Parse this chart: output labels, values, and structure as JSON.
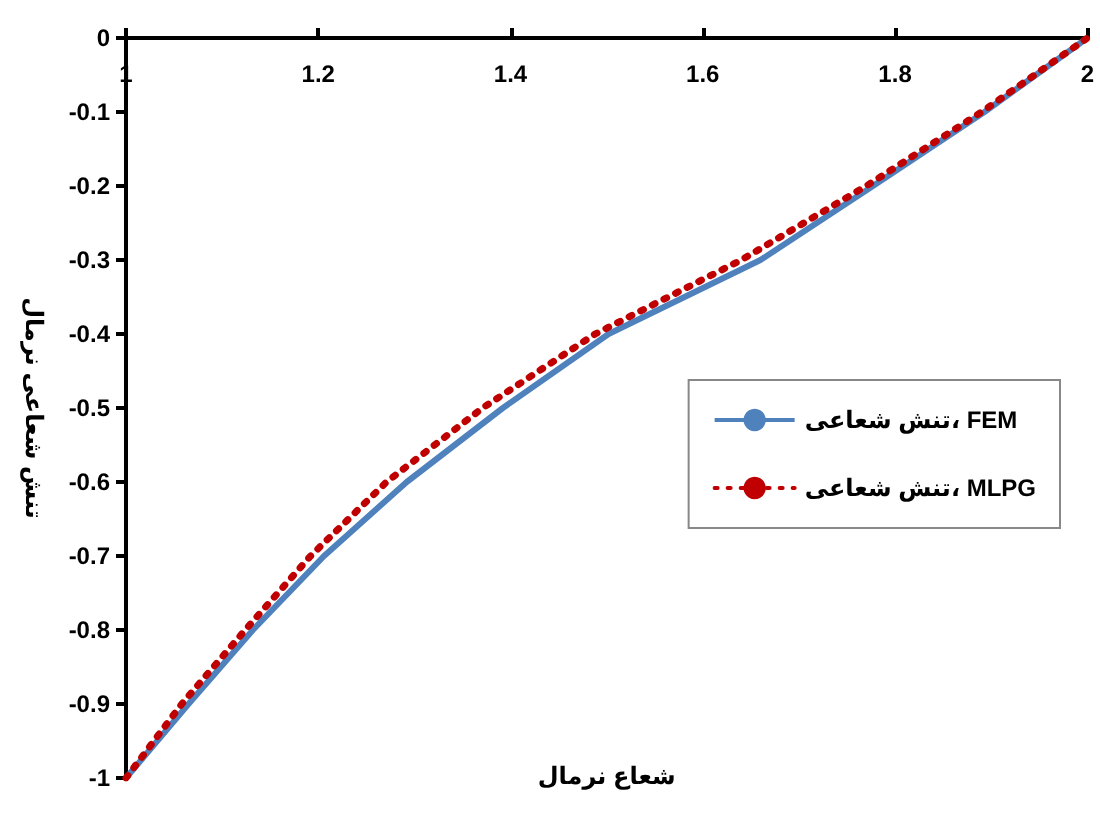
{
  "chart_data": {
    "type": "line",
    "xlabel": "شعاع نرمال",
    "ylabel": "تنش شعاعی نرمال",
    "xlim": [
      1,
      2
    ],
    "xticks": [
      1,
      1.2,
      1.4,
      1.6,
      1.8,
      2
    ],
    "ylim": [
      -1,
      0
    ],
    "yticks": [
      -1,
      -0.9,
      -0.8,
      -0.7,
      -0.6,
      -0.5,
      -0.4,
      -0.3,
      -0.2,
      -0.1,
      0
    ],
    "grid": false,
    "legend": "right",
    "marker": "none",
    "series": [
      {
        "name": "تنش شعاعی، FEM",
        "color": "#4f81bd",
        "line_style": "solid",
        "x": [
          1,
          1.065,
          1.132,
          1.206,
          1.292,
          1.392,
          1.502,
          1.66,
          1.777,
          1.893,
          2
        ],
        "values": [
          -1,
          -0.9,
          -0.8,
          -0.7,
          -0.6,
          -0.5,
          -0.4,
          -0.3,
          -0.2,
          -0.1,
          0
        ]
      },
      {
        "name": "تنش شعاعی، MLPG",
        "color": "#c00000",
        "line_style": "dotted",
        "x": [
          1,
          1.058,
          1.124,
          1.192,
          1.271,
          1.371,
          1.488,
          1.64,
          1.77,
          1.89,
          2
        ],
        "values": [
          -1,
          -0.9,
          -0.8,
          -0.7,
          -0.6,
          -0.5,
          -0.4,
          -0.3,
          -0.2,
          -0.1,
          0
        ]
      }
    ]
  }
}
